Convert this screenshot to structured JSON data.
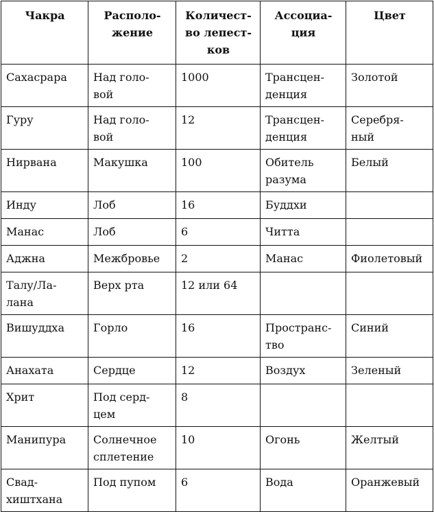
{
  "table": {
    "headers": [
      "Чакра",
      "Располо-\nжение",
      "Количест-\nво лепест-\nков",
      "Ассоциа-\nция",
      "Цвет"
    ],
    "rows": [
      [
        "Сахасрара",
        "Над голо-\nвой",
        "1000",
        "Трансцен-\nденция",
        "Золотой"
      ],
      [
        "Гуру",
        "Над голо-\nвой",
        "12",
        "Трансцен-\nденция",
        "Серебря-\nный"
      ],
      [
        "Нирвана",
        "Макушка",
        "100",
        "Обитель\nразума",
        "Белый"
      ],
      [
        "Инду",
        "Лоб",
        "16",
        "Буддхи",
        ""
      ],
      [
        "Манас",
        "Лоб",
        "6",
        "Читта",
        ""
      ],
      [
        "Аджна",
        "Межбровье",
        "2",
        "Манас",
        "Фиолетовый"
      ],
      [
        "Талу/Ла-\nлана",
        "Верх рта",
        "12 или 64",
        "",
        ""
      ],
      [
        "Вишуддха",
        "Горло",
        "16",
        "Пространс-\nтво",
        "Синий"
      ],
      [
        "Анахата",
        "Сердце",
        "12",
        "Воздух",
        "Зеленый"
      ],
      [
        "Хрит",
        "Под серд-\nцем",
        "8",
        "",
        ""
      ],
      [
        "Манипура",
        "Солнечное\nсплетение",
        "10",
        "Огонь",
        "Желтый"
      ],
      [
        "Свад-\nхиштхана",
        "Под пупом",
        "6",
        "Вода",
        "Оранжевый"
      ]
    ]
  }
}
